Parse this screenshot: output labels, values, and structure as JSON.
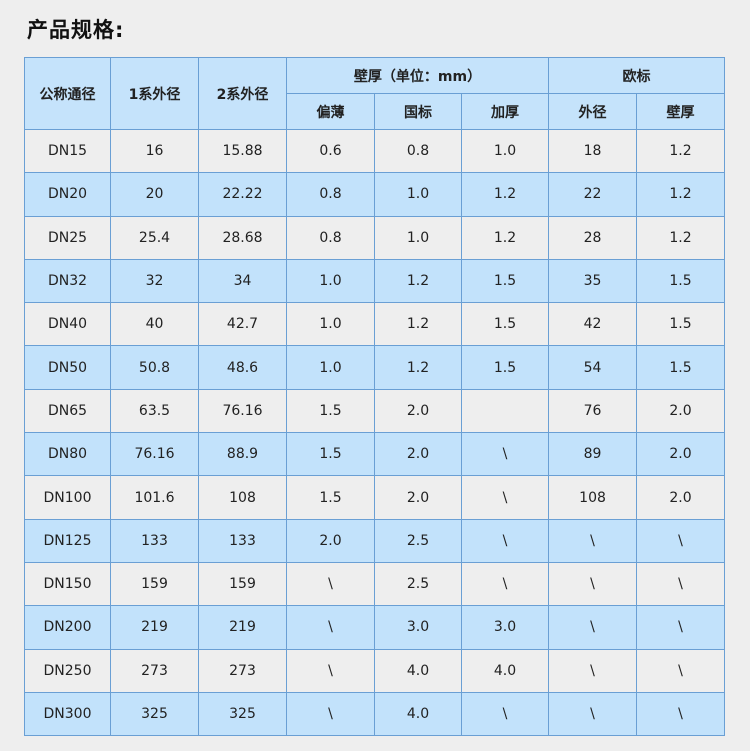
{
  "title": "产品规格:",
  "header": {
    "nominal": "公称通径",
    "series1_od": "1系外径",
    "series2_od": "2系外径",
    "wall_group": "壁厚（单位：mm）",
    "euro_group": "欧标",
    "wall_sub": [
      "偏薄",
      "国标",
      "加厚"
    ],
    "euro_sub": [
      "外径",
      "壁厚"
    ]
  },
  "rows": [
    [
      "DN15",
      "16",
      "15.88",
      "0.6",
      "0.8",
      "1.0",
      "18",
      "1.2"
    ],
    [
      "DN20",
      "20",
      "22.22",
      "0.8",
      "1.0",
      "1.2",
      "22",
      "1.2"
    ],
    [
      "DN25",
      "25.4",
      "28.68",
      "0.8",
      "1.0",
      "1.2",
      "28",
      "1.2"
    ],
    [
      "DN32",
      "32",
      "34",
      "1.0",
      "1.2",
      "1.5",
      "35",
      "1.5"
    ],
    [
      "DN40",
      "40",
      "42.7",
      "1.0",
      "1.2",
      "1.5",
      "42",
      "1.5"
    ],
    [
      "DN50",
      "50.8",
      "48.6",
      "1.0",
      "1.2",
      "1.5",
      "54",
      "1.5"
    ],
    [
      "DN65",
      "63.5",
      "76.16",
      "1.5",
      "2.0",
      "",
      "76",
      "2.0"
    ],
    [
      "DN80",
      "76.16",
      "88.9",
      "1.5",
      "2.0",
      "\\",
      "89",
      "2.0"
    ],
    [
      "DN100",
      "101.6",
      "108",
      "1.5",
      "2.0",
      "\\",
      "108",
      "2.0"
    ],
    [
      "DN125",
      "133",
      "133",
      "2.0",
      "2.5",
      "\\",
      "\\",
      "\\"
    ],
    [
      "DN150",
      "159",
      "159",
      "\\",
      "2.5",
      "\\",
      "\\",
      "\\"
    ],
    [
      "DN200",
      "219",
      "219",
      "\\",
      "3.0",
      "3.0",
      "\\",
      "\\"
    ],
    [
      "DN250",
      "273",
      "273",
      "\\",
      "4.0",
      "4.0",
      "\\",
      "\\"
    ],
    [
      "DN300",
      "325",
      "325",
      "\\",
      "4.0",
      "\\",
      "\\",
      "\\"
    ]
  ]
}
